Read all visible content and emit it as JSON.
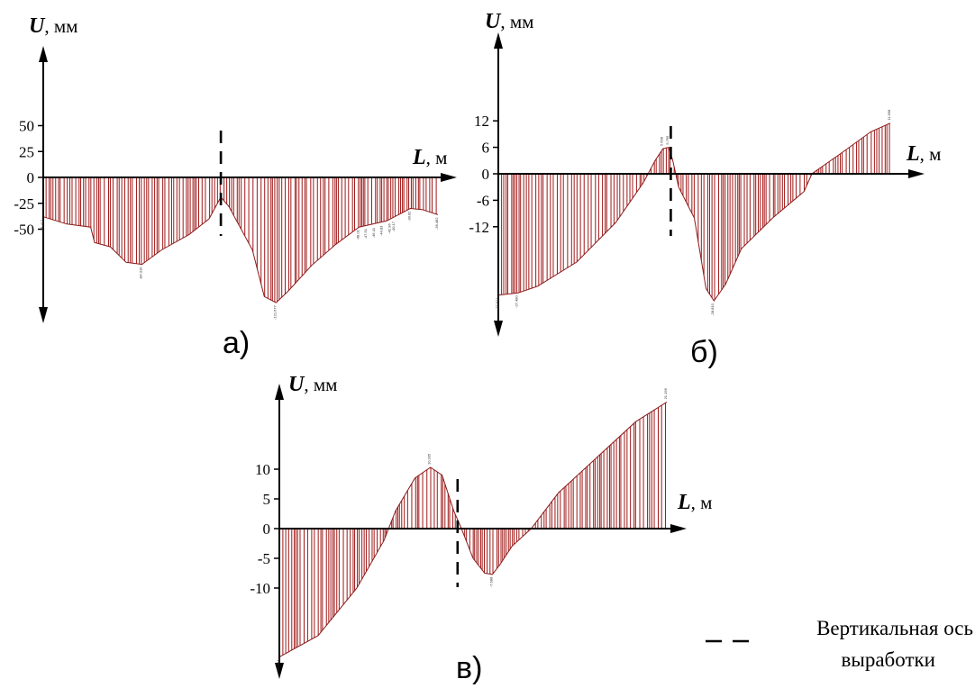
{
  "legend": {
    "line1": "Вертикальная ось",
    "line2": "выработки"
  },
  "chart_data": [
    {
      "type": "area",
      "panel_label": "а)",
      "y_symbol": "U",
      "y_unit": ", мм",
      "x_symbol": "L",
      "x_unit": ", м",
      "y_ticks": [
        50,
        25,
        0,
        -25,
        -50
      ],
      "ylim": [
        -120,
        120
      ],
      "xlim": [
        0,
        100
      ],
      "vertical_axis_x": 45,
      "points": [
        [
          0,
          -38
        ],
        [
          6,
          -45
        ],
        [
          12,
          -48
        ],
        [
          13,
          -63
        ],
        [
          17,
          -67
        ],
        [
          21,
          -82
        ],
        [
          25,
          -84
        ],
        [
          30,
          -70
        ],
        [
          37,
          -55
        ],
        [
          42,
          -40
        ],
        [
          45,
          -19
        ],
        [
          47,
          -28
        ],
        [
          53,
          -70
        ],
        [
          56,
          -115
        ],
        [
          59,
          -121
        ],
        [
          62,
          -110
        ],
        [
          68,
          -85
        ],
        [
          74,
          -65
        ],
        [
          80,
          -48
        ],
        [
          87,
          -42
        ],
        [
          93,
          -30
        ],
        [
          96,
          -31
        ],
        [
          100,
          -36
        ]
      ],
      "data_labels": [
        {
          "x": 0,
          "y": -38,
          "text": "-38.417"
        },
        {
          "x": 25,
          "y": -84,
          "text": "-84.310"
        },
        {
          "x": 59,
          "y": -121,
          "text": "-121.677"
        },
        {
          "x": 80,
          "y": -48,
          "text": "-48.01"
        },
        {
          "x": 82,
          "y": -47,
          "text": "-47.51"
        },
        {
          "x": 84,
          "y": -46,
          "text": "-46.41"
        },
        {
          "x": 86,
          "y": -44,
          "text": "-44.83"
        },
        {
          "x": 88,
          "y": -42,
          "text": "-42.96"
        },
        {
          "x": 89,
          "y": -40,
          "text": "-40.17"
        },
        {
          "x": 93,
          "y": -30,
          "text": "-30.82"
        },
        {
          "x": 100,
          "y": -36,
          "text": "-36.482"
        }
      ]
    },
    {
      "type": "area",
      "panel_label": "б)",
      "y_symbol": "U",
      "y_unit": ", мм",
      "x_symbol": "L",
      "x_unit": ", м",
      "y_ticks": [
        12,
        6,
        0,
        -6,
        -12
      ],
      "ylim": [
        -30,
        30
      ],
      "xlim": [
        0,
        100
      ],
      "vertical_axis_x": 44,
      "points": [
        [
          0,
          -27.5
        ],
        [
          5,
          -27.0
        ],
        [
          10,
          -25.5
        ],
        [
          20,
          -20
        ],
        [
          30,
          -11
        ],
        [
          37,
          -2
        ],
        [
          40,
          3
        ],
        [
          42,
          5.7
        ],
        [
          43.5,
          6
        ],
        [
          44.5,
          3
        ],
        [
          46,
          -3
        ],
        [
          50,
          -10
        ],
        [
          53,
          -26
        ],
        [
          55,
          -28.8
        ],
        [
          58,
          -25
        ],
        [
          62,
          -17
        ],
        [
          70,
          -10
        ],
        [
          78,
          -4
        ],
        [
          80,
          0
        ],
        [
          88,
          5
        ],
        [
          95,
          9.5
        ],
        [
          100,
          11.5
        ]
      ],
      "data_labels": [
        {
          "x": 0,
          "y": -27.5,
          "text": "-27.911"
        },
        {
          "x": 5,
          "y": -27,
          "text": "-27.480"
        },
        {
          "x": 42,
          "y": 5.7,
          "text": "5.698"
        },
        {
          "x": 43.5,
          "y": 6,
          "text": "5.795"
        },
        {
          "x": 55,
          "y": -28.8,
          "text": "-28.810"
        },
        {
          "x": 100,
          "y": 11.5,
          "text": "11.598"
        }
      ]
    },
    {
      "type": "area",
      "panel_label": "в)",
      "y_symbol": "U",
      "y_unit": ", мм",
      "x_symbol": "L",
      "x_unit": ", м",
      "y_ticks": [
        10,
        5,
        0,
        -5,
        -10
      ],
      "ylim": [
        -22,
        22
      ],
      "xlim": [
        0,
        100
      ],
      "vertical_axis_x": 46,
      "points": [
        [
          0,
          -21.6
        ],
        [
          10,
          -18
        ],
        [
          20,
          -10
        ],
        [
          27,
          -2
        ],
        [
          30,
          3
        ],
        [
          35,
          8.5
        ],
        [
          39,
          10.3
        ],
        [
          42,
          9
        ],
        [
          45,
          3
        ],
        [
          47,
          0
        ],
        [
          50,
          -5
        ],
        [
          53,
          -7.5
        ],
        [
          55,
          -7.7
        ],
        [
          57,
          -6
        ],
        [
          60,
          -3
        ],
        [
          65,
          0
        ],
        [
          72,
          6
        ],
        [
          82,
          12
        ],
        [
          92,
          18
        ],
        [
          100,
          21.3
        ]
      ],
      "data_labels": [
        {
          "x": 0,
          "y": -21.6,
          "text": "-21.564"
        },
        {
          "x": 39,
          "y": 10.3,
          "text": "10.335"
        },
        {
          "x": 55,
          "y": -7.7,
          "text": "-7.688"
        },
        {
          "x": 100,
          "y": 21.3,
          "text": "21.196"
        }
      ]
    }
  ]
}
